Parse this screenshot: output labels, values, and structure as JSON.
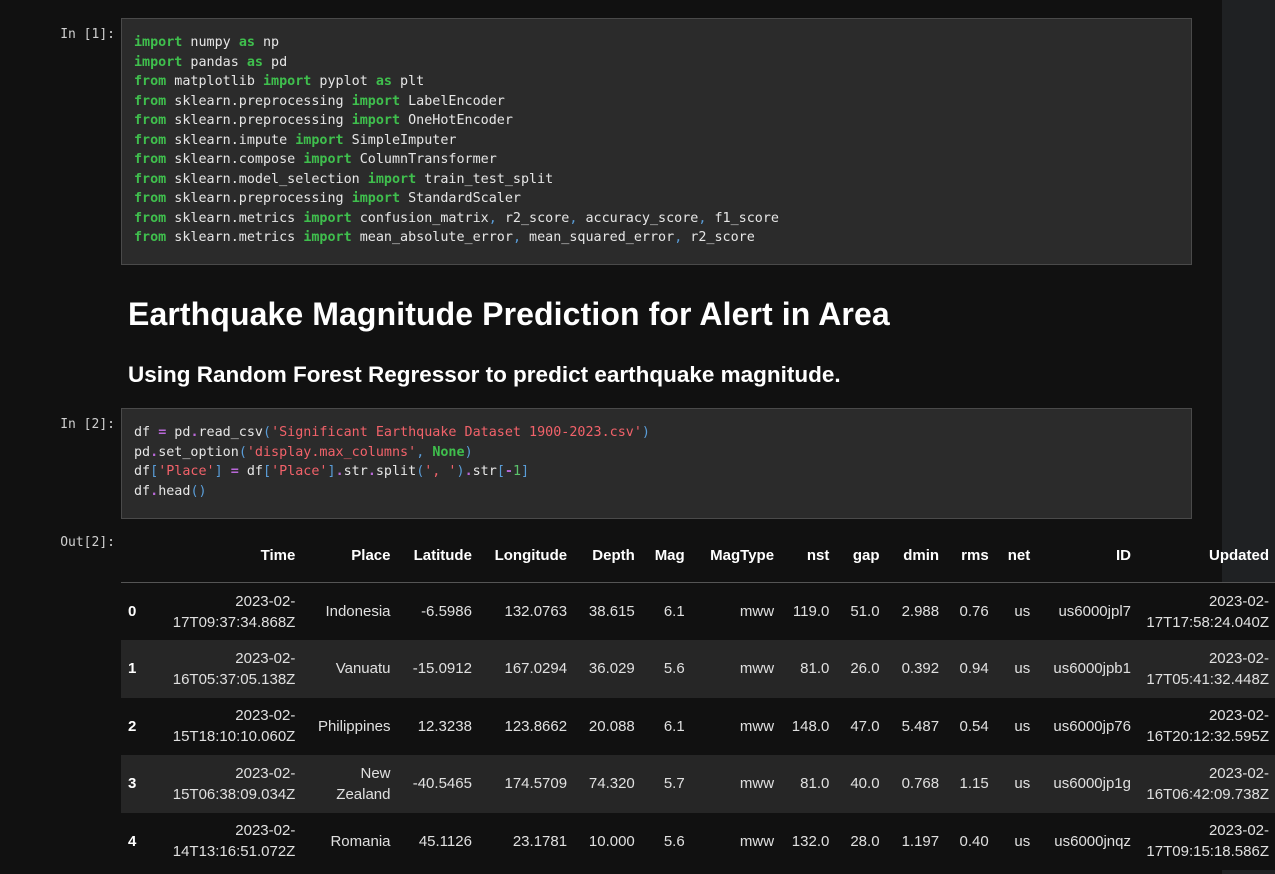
{
  "cells": {
    "cell1": {
      "prompt": "In [1]:",
      "lines": [
        [
          [
            "kw",
            "import"
          ],
          [
            "t",
            " numpy "
          ],
          [
            "kw",
            "as"
          ],
          [
            "t",
            " np"
          ]
        ],
        [
          [
            "kw",
            "import"
          ],
          [
            "t",
            " pandas "
          ],
          [
            "kw",
            "as"
          ],
          [
            "t",
            " pd"
          ]
        ],
        [
          [
            "kw",
            "from"
          ],
          [
            "t",
            " matplotlib "
          ],
          [
            "kw",
            "import"
          ],
          [
            "t",
            " pyplot "
          ],
          [
            "kw",
            "as"
          ],
          [
            "t",
            " plt"
          ]
        ],
        [
          [
            "kw",
            "from"
          ],
          [
            "t",
            " sklearn.preprocessing "
          ],
          [
            "kw",
            "import"
          ],
          [
            "t",
            " LabelEncoder"
          ]
        ],
        [
          [
            "kw",
            "from"
          ],
          [
            "t",
            " sklearn.preprocessing "
          ],
          [
            "kw",
            "import"
          ],
          [
            "t",
            " OneHotEncoder"
          ]
        ],
        [
          [
            "kw",
            "from"
          ],
          [
            "t",
            " sklearn.impute "
          ],
          [
            "kw",
            "import"
          ],
          [
            "t",
            " SimpleImputer"
          ]
        ],
        [
          [
            "kw",
            "from"
          ],
          [
            "t",
            " sklearn.compose "
          ],
          [
            "kw",
            "import"
          ],
          [
            "t",
            " ColumnTransformer"
          ]
        ],
        [
          [
            "kw",
            "from"
          ],
          [
            "t",
            " sklearn.model_selection "
          ],
          [
            "kw",
            "import"
          ],
          [
            "t",
            " train_test_split"
          ]
        ],
        [
          [
            "kw",
            "from"
          ],
          [
            "t",
            " sklearn.preprocessing "
          ],
          [
            "kw",
            "import"
          ],
          [
            "t",
            " StandardScaler"
          ]
        ],
        [
          [
            "kw",
            "from"
          ],
          [
            "t",
            " sklearn.metrics "
          ],
          [
            "kw",
            "import"
          ],
          [
            "t",
            " confusion_matrix"
          ],
          [
            "punc",
            ","
          ],
          [
            "t",
            " r2_score"
          ],
          [
            "punc",
            ","
          ],
          [
            "t",
            " accuracy_score"
          ],
          [
            "punc",
            ","
          ],
          [
            "t",
            " f1_score"
          ]
        ],
        [
          [
            "kw",
            "from"
          ],
          [
            "t",
            " sklearn.metrics "
          ],
          [
            "kw",
            "import"
          ],
          [
            "t",
            " mean_absolute_error"
          ],
          [
            "punc",
            ","
          ],
          [
            "t",
            " mean_squared_error"
          ],
          [
            "punc",
            ","
          ],
          [
            "t",
            " r2_score"
          ]
        ]
      ]
    },
    "markdown": {
      "h1": "Earthquake Magnitude Prediction for Alert in Area",
      "h2": "Using Random Forest Regressor to predict earthquake magnitude."
    },
    "cell2": {
      "prompt": "In [2]:",
      "lines": [
        [
          [
            "t",
            "df "
          ],
          [
            "op",
            "="
          ],
          [
            "t",
            " pd"
          ],
          [
            "op",
            "."
          ],
          [
            "t",
            "read_csv"
          ],
          [
            "punc",
            "("
          ],
          [
            "str",
            "'Significant Earthquake Dataset 1900-2023.csv'"
          ],
          [
            "punc",
            ")"
          ]
        ],
        [
          [
            "t",
            "pd"
          ],
          [
            "op",
            "."
          ],
          [
            "t",
            "set_option"
          ],
          [
            "punc",
            "("
          ],
          [
            "str",
            "'display.max_columns'"
          ],
          [
            "punc",
            ","
          ],
          [
            "t",
            " "
          ],
          [
            "kwc",
            "None"
          ],
          [
            "punc",
            ")"
          ]
        ],
        [
          [
            "t",
            "df"
          ],
          [
            "punc",
            "["
          ],
          [
            "str",
            "'Place'"
          ],
          [
            "punc",
            "]"
          ],
          [
            "t",
            " "
          ],
          [
            "op",
            "="
          ],
          [
            "t",
            " df"
          ],
          [
            "punc",
            "["
          ],
          [
            "str",
            "'Place'"
          ],
          [
            "punc",
            "]"
          ],
          [
            "op",
            "."
          ],
          [
            "t",
            "str"
          ],
          [
            "op",
            "."
          ],
          [
            "t",
            "split"
          ],
          [
            "punc",
            "("
          ],
          [
            "str",
            "', '"
          ],
          [
            "punc",
            ")"
          ],
          [
            "op",
            "."
          ],
          [
            "t",
            "str"
          ],
          [
            "punc",
            "["
          ],
          [
            "op",
            "-"
          ],
          [
            "num",
            "1"
          ],
          [
            "punc",
            "]"
          ]
        ],
        [
          [
            "t",
            "df"
          ],
          [
            "op",
            "."
          ],
          [
            "t",
            "head"
          ],
          [
            "punc",
            "()"
          ]
        ]
      ]
    },
    "output2": {
      "prompt": "Out[2]:",
      "columns": [
        "",
        "Time",
        "Place",
        "Latitude",
        "Longitude",
        "Depth",
        "Mag",
        "MagType",
        "nst",
        "gap",
        "dmin",
        "rms",
        "net",
        "ID",
        "Updated"
      ],
      "rows": [
        [
          "0",
          "2023-02-17T09:37:34.868Z",
          "Indonesia",
          "-6.5986",
          "132.0763",
          "38.615",
          "6.1",
          "mww",
          "119.0",
          "51.0",
          "2.988",
          "0.76",
          "us",
          "us6000jpl7",
          "2023-02-17T17:58:24.040Z"
        ],
        [
          "1",
          "2023-02-16T05:37:05.138Z",
          "Vanuatu",
          "-15.0912",
          "167.0294",
          "36.029",
          "5.6",
          "mww",
          "81.0",
          "26.0",
          "0.392",
          "0.94",
          "us",
          "us6000jpb1",
          "2023-02-17T05:41:32.448Z"
        ],
        [
          "2",
          "2023-02-15T18:10:10.060Z",
          "Philippines",
          "12.3238",
          "123.8662",
          "20.088",
          "6.1",
          "mww",
          "148.0",
          "47.0",
          "5.487",
          "0.54",
          "us",
          "us6000jp76",
          "2023-02-16T20:12:32.595Z"
        ],
        [
          "3",
          "2023-02-15T06:38:09.034Z",
          "New Zealand",
          "-40.5465",
          "174.5709",
          "74.320",
          "5.7",
          "mww",
          "81.0",
          "40.0",
          "0.768",
          "1.15",
          "us",
          "us6000jp1g",
          "2023-02-16T06:42:09.738Z"
        ],
        [
          "4",
          "2023-02-14T13:16:51.072Z",
          "Romania",
          "45.1126",
          "23.1781",
          "10.000",
          "5.6",
          "mww",
          "132.0",
          "28.0",
          "1.197",
          "0.40",
          "us",
          "us6000jnqz",
          "2023-02-17T09:15:18.586Z"
        ]
      ]
    }
  }
}
